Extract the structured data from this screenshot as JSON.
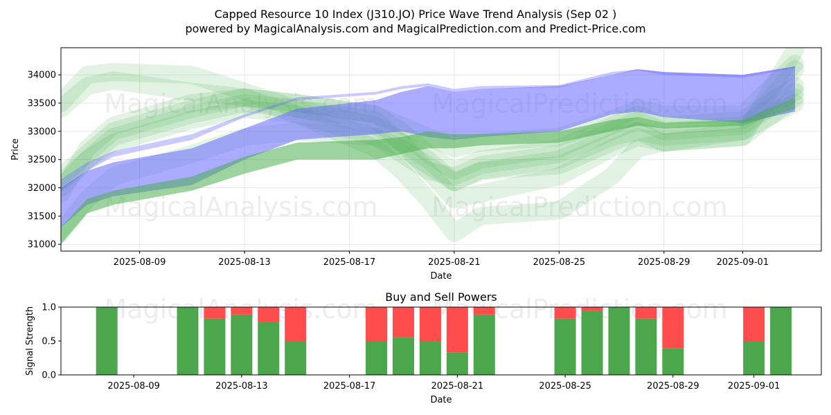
{
  "title_line1": "Capped Resource 10 Index (J310.JO) Price Wave Trend Analysis (Sep 02 )",
  "title_line2": "powered by MagicalAnalysis.com and MagicalPrediction.com and Predict-Price.com",
  "watermarks": [
    "MagicalAnalysis.com",
    "MagicalPrediction.com"
  ],
  "colors": {
    "buy": "#4ca64c",
    "sell": "#ff4c4c",
    "blue_band": "#6666ff",
    "green_band": "#4caf50"
  },
  "chart_data": [
    {
      "type": "area",
      "name": "price-wave-chart",
      "xlabel": "Date",
      "ylabel": "Price",
      "ylim": [
        30880,
        34480
      ],
      "xlim": [
        "2025-08-06",
        "2025-09-04"
      ],
      "grid": true,
      "yticks": [
        31000,
        31500,
        32000,
        32500,
        33000,
        33500,
        34000
      ],
      "xticks": [
        "2025-08-09",
        "2025-08-13",
        "2025-08-17",
        "2025-08-21",
        "2025-08-25",
        "2025-08-29",
        "2025-09-01"
      ],
      "x": [
        "2025-08-06",
        "2025-08-07",
        "2025-08-08",
        "2025-08-11",
        "2025-08-13",
        "2025-08-15",
        "2025-08-18",
        "2025-08-19",
        "2025-08-20",
        "2025-08-21",
        "2025-08-22",
        "2025-08-25",
        "2025-08-27",
        "2025-08-28",
        "2025-08-29",
        "2025-09-01",
        "2025-09-03"
      ],
      "series": [
        {
          "name": "blue-band-upper",
          "color": "#6666ff",
          "lower": [
            31950,
            32300,
            32550,
            32850,
            33250,
            33550,
            33650,
            33750,
            33800,
            33700,
            33750,
            33780,
            34000,
            34080,
            34000,
            33950,
            34120
          ],
          "upper": [
            32150,
            32450,
            32650,
            32950,
            33300,
            33600,
            33700,
            33800,
            33850,
            33750,
            33800,
            33820,
            34050,
            34100,
            34050,
            34000,
            34150
          ]
        },
        {
          "name": "blue-band-main",
          "color": "#6666ff",
          "lower": [
            31300,
            31700,
            31850,
            32050,
            32500,
            32850,
            32950,
            33000,
            32900,
            32850,
            32900,
            33000,
            33300,
            33350,
            33250,
            33150,
            33350
          ],
          "upper": [
            32000,
            32300,
            32450,
            32700,
            33050,
            33400,
            33550,
            33700,
            33800,
            33700,
            33750,
            33800,
            34000,
            34100,
            34050,
            34000,
            34150
          ]
        },
        {
          "name": "green-band-main",
          "color": "#4caf50",
          "lower": [
            31000,
            31550,
            31700,
            31950,
            32250,
            32500,
            32500,
            32600,
            32700,
            32700,
            32750,
            32800,
            33000,
            33100,
            33050,
            33100,
            33400
          ],
          "upper": [
            31300,
            31800,
            31950,
            32200,
            32550,
            32800,
            32850,
            32900,
            33000,
            32950,
            32950,
            33000,
            33200,
            33250,
            33150,
            33200,
            33600
          ]
        }
      ],
      "ghost_waves": [
        [
          32200,
          32600,
          33000,
          33400,
          33600,
          33500,
          33300,
          33000,
          32600,
          32300,
          32500,
          32700,
          33100,
          33300,
          33100,
          33200,
          33800
        ],
        [
          31200,
          31800,
          32200,
          32600,
          32900,
          33000,
          32900,
          32700,
          32400,
          32100,
          32300,
          32500,
          32900,
          33000,
          32900,
          33000,
          33500
        ],
        [
          33500,
          34000,
          34050,
          34000,
          33700,
          33400,
          33200,
          32800,
          32300,
          31800,
          31900,
          32200,
          32700,
          32900,
          32800,
          32900,
          33600
        ],
        [
          32000,
          32500,
          32800,
          33200,
          33400,
          33300,
          32700,
          32300,
          31800,
          31200,
          31500,
          31600,
          32200,
          32700,
          32800,
          33000,
          34100
        ],
        [
          31900,
          32700,
          33100,
          33500,
          33600,
          33300,
          32900,
          32600,
          32300,
          32200,
          32400,
          32600,
          33000,
          33200,
          33000,
          33100,
          33700
        ],
        [
          33400,
          33800,
          33900,
          33700,
          33600,
          33500,
          33300,
          33100,
          32900,
          32700,
          32800,
          32900,
          33200,
          33400,
          33300,
          33300,
          34200
        ],
        [
          32100,
          32500,
          32900,
          33300,
          33500,
          33400,
          33100,
          32800,
          32500,
          32100,
          32300,
          32400,
          32800,
          33000,
          32800,
          32900,
          34450
        ]
      ]
    },
    {
      "type": "bar",
      "name": "buy-sell-powers",
      "title": "Buy and Sell Powers",
      "xlabel": "Date",
      "ylabel": "Signal Strength",
      "ylim": [
        0,
        1
      ],
      "yticks": [
        "0.0",
        "0.5",
        "1.0"
      ],
      "xticks": [
        "2025-08-09",
        "2025-08-13",
        "2025-08-17",
        "2025-08-21",
        "2025-08-25",
        "2025-08-29",
        "2025-09-01"
      ],
      "categories": [
        "2025-08-08",
        "2025-08-11",
        "2025-08-12",
        "2025-08-13",
        "2025-08-14",
        "2025-08-15",
        "2025-08-18",
        "2025-08-19",
        "2025-08-20",
        "2025-08-21",
        "2025-08-22",
        "2025-08-25",
        "2025-08-26",
        "2025-08-27",
        "2025-08-28",
        "2025-08-29",
        "2025-09-01",
        "2025-09-02"
      ],
      "series": [
        {
          "name": "Buy",
          "color": "#4ca64c",
          "values": [
            1.0,
            1.0,
            0.83,
            0.89,
            0.78,
            0.5,
            0.5,
            0.56,
            0.5,
            0.33,
            0.89,
            0.83,
            0.94,
            1.0,
            0.83,
            0.39,
            0.5,
            1.0
          ]
        },
        {
          "name": "Sell",
          "color": "#ff4c4c",
          "values": [
            0.0,
            0.0,
            0.17,
            0.11,
            0.22,
            0.5,
            0.5,
            0.44,
            0.5,
            0.67,
            0.11,
            0.17,
            0.06,
            0.0,
            0.17,
            0.61,
            0.5,
            0.0
          ]
        }
      ]
    }
  ]
}
